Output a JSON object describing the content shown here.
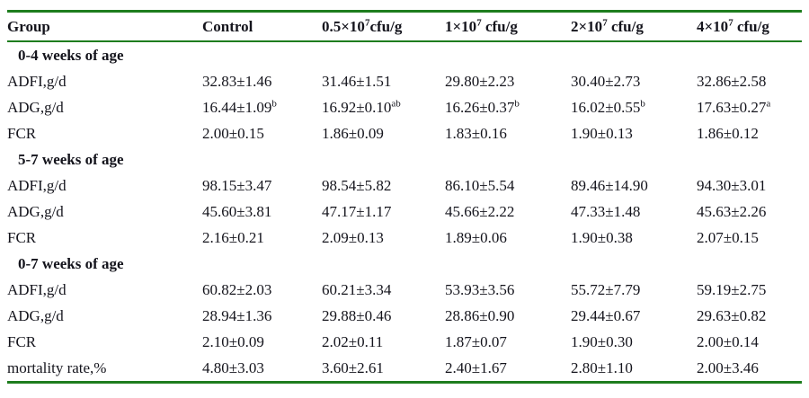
{
  "colors": {
    "rule_green": "#1e7d1e",
    "text": "#14141c"
  },
  "table": {
    "columns": [
      {
        "pre": "Group"
      },
      {
        "pre": "Control"
      },
      {
        "pre": "0.5×10",
        "sup": "7",
        "post": "cfu/g"
      },
      {
        "pre": "1×10",
        "sup": "7",
        "post": " cfu/g"
      },
      {
        "pre": "2×10",
        "sup": "7",
        "post": " cfu/g"
      },
      {
        "pre": "4×10",
        "sup": "7",
        "post": " cfu/g"
      }
    ],
    "sections": [
      {
        "title": "0-4 weeks of age",
        "rows": [
          {
            "label": "ADFI,g/d",
            "cells": [
              {
                "v": "32.83±1.46"
              },
              {
                "v": "31.46±1.51"
              },
              {
                "v": "29.80±2.23"
              },
              {
                "v": "30.40±2.73"
              },
              {
                "v": "32.86±2.58"
              }
            ]
          },
          {
            "label": "ADG,g/d",
            "cells": [
              {
                "v": "16.44±1.09",
                "sup": "b"
              },
              {
                "v": "16.92±0.10",
                "sup": "ab"
              },
              {
                "v": "16.26±0.37",
                "sup": "b"
              },
              {
                "v": "16.02±0.55",
                "sup": "b"
              },
              {
                "v": "17.63±0.27",
                "sup": "a"
              }
            ]
          },
          {
            "label": "FCR",
            "cells": [
              {
                "v": "2.00±0.15"
              },
              {
                "v": "1.86±0.09"
              },
              {
                "v": "1.83±0.16"
              },
              {
                "v": "1.90±0.13"
              },
              {
                "v": "1.86±0.12"
              }
            ]
          }
        ]
      },
      {
        "title": "5-7 weeks of age",
        "rows": [
          {
            "label": "ADFI,g/d",
            "cells": [
              {
                "v": "98.15±3.47"
              },
              {
                "v": "98.54±5.82"
              },
              {
                "v": "86.10±5.54"
              },
              {
                "v": "89.46±14.90"
              },
              {
                "v": "94.30±3.01"
              }
            ]
          },
          {
            "label": "ADG,g/d",
            "cells": [
              {
                "v": "45.60±3.81"
              },
              {
                "v": "47.17±1.17"
              },
              {
                "v": "45.66±2.22"
              },
              {
                "v": "47.33±1.48"
              },
              {
                "v": "45.63±2.26"
              }
            ]
          },
          {
            "label": "FCR",
            "cells": [
              {
                "v": "2.16±0.21"
              },
              {
                "v": "2.09±0.13"
              },
              {
                "v": "1.89±0.06"
              },
              {
                "v": "1.90±0.38"
              },
              {
                "v": "2.07±0.15"
              }
            ]
          }
        ]
      },
      {
        "title": "0-7 weeks of age",
        "rows": [
          {
            "label": "ADFI,g/d",
            "cells": [
              {
                "v": "60.82±2.03"
              },
              {
                "v": "60.21±3.34"
              },
              {
                "v": "53.93±3.56"
              },
              {
                "v": "55.72±7.79"
              },
              {
                "v": "59.19±2.75"
              }
            ]
          },
          {
            "label": "ADG,g/d",
            "cells": [
              {
                "v": "28.94±1.36"
              },
              {
                "v": "29.88±0.46"
              },
              {
                "v": "28.86±0.90"
              },
              {
                "v": "29.44±0.67"
              },
              {
                "v": "29.63±0.82"
              }
            ]
          },
          {
            "label": "FCR",
            "cells": [
              {
                "v": "2.10±0.09"
              },
              {
                "v": "2.02±0.11"
              },
              {
                "v": "1.87±0.07"
              },
              {
                "v": "1.90±0.30"
              },
              {
                "v": "2.00±0.14"
              }
            ]
          },
          {
            "label": "mortality rate,%",
            "cells": [
              {
                "v": "4.80±3.03"
              },
              {
                "v": "3.60±2.61"
              },
              {
                "v": "2.40±1.67"
              },
              {
                "v": "2.80±1.10"
              },
              {
                "v": "2.00±3.46"
              }
            ]
          }
        ]
      }
    ]
  }
}
